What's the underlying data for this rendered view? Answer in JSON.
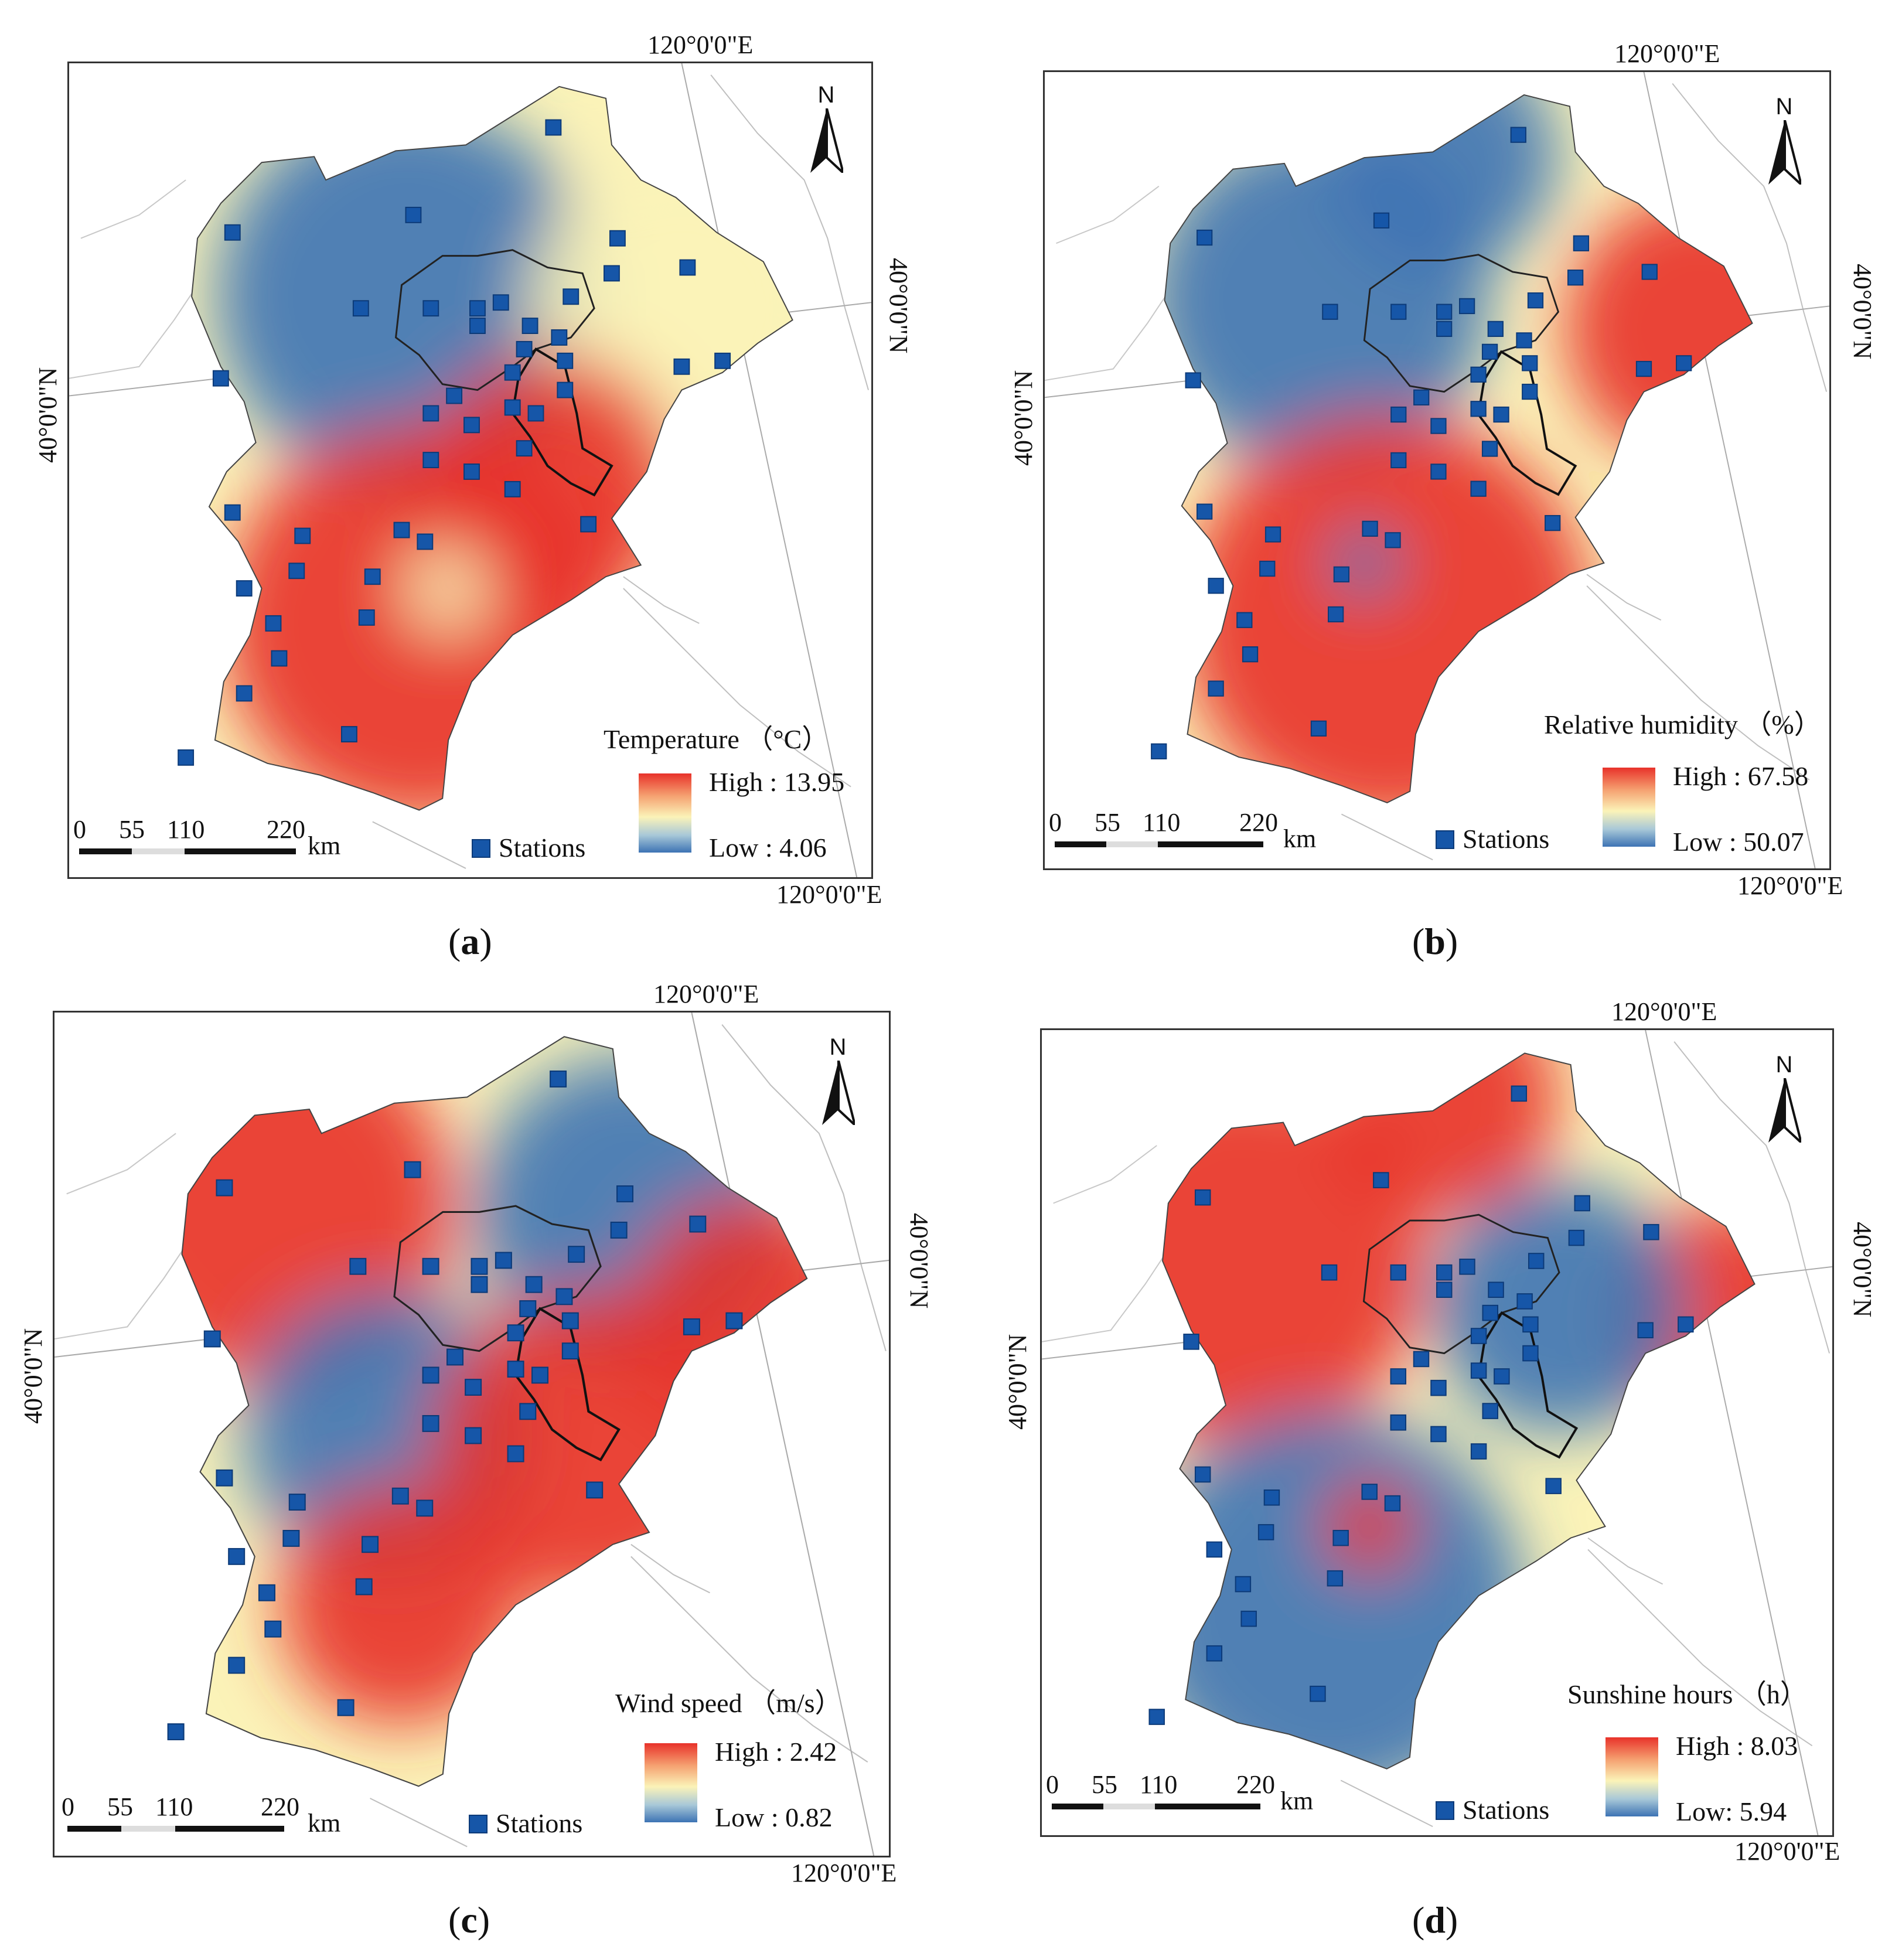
{
  "shared": {
    "lon_label": "120°0'0\"E",
    "lat_label": "40°0'0\"N",
    "north_label": "N",
    "scale_ticks": [
      "0",
      "55",
      "110",
      "220"
    ],
    "scale_unit": "km",
    "stations_label": "Stations",
    "colors": {
      "high": "#e8322a",
      "mid": "#fbf3b8",
      "low": "#3d73b4",
      "station": "#1656a8"
    }
  },
  "panels": [
    {
      "id": "a",
      "caption": "a",
      "variable": "Temperature （°C）",
      "high": "High : 13.95",
      "low": "Low : 4.06"
    },
    {
      "id": "b",
      "caption": "b",
      "variable": "Relative humidity （%）",
      "high": "High : 67.58",
      "low": "Low : 50.07"
    },
    {
      "id": "c",
      "caption": "c",
      "variable": "Wind speed （m/s）",
      "high": "High : 2.42",
      "low": "Low : 0.82"
    },
    {
      "id": "d",
      "caption": "d",
      "variable": "Sunshine hours （h）",
      "high": "High : 8.03",
      "low": "Low: 5.94"
    }
  ]
}
